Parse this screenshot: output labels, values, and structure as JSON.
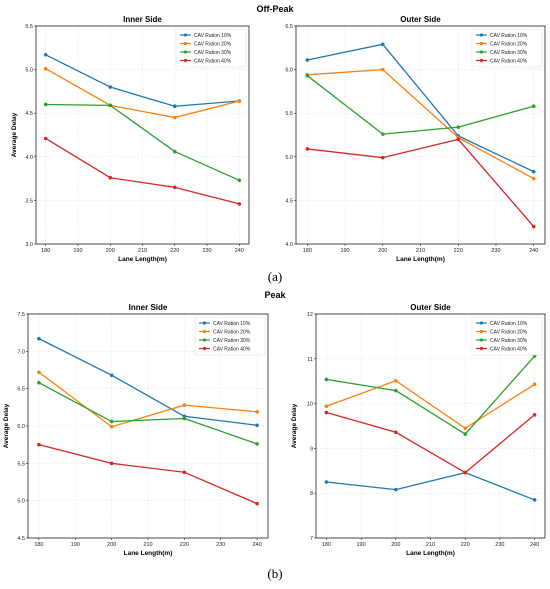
{
  "figure": {
    "label_a": "(a)",
    "label_b": "(b)"
  },
  "chart_data": [
    {
      "type": "line",
      "group": "Off-Peak",
      "title": "Inner Side",
      "xlabel": "Lane Length(m)",
      "ylabel": "Average Delay",
      "x": [
        180,
        200,
        220,
        240
      ],
      "xticks": [
        180,
        190,
        200,
        210,
        220,
        230,
        240
      ],
      "xlim": [
        177,
        243
      ],
      "ylim": [
        3.0,
        5.5
      ],
      "yticks": [
        3.0,
        3.5,
        4.0,
        4.5,
        5.0,
        5.5
      ],
      "ytick_labels": [
        "3.0",
        "3.5",
        "4.0",
        "4.5",
        "5.0",
        "5.5"
      ],
      "grid": true,
      "legend_position": "top-right",
      "series": [
        {
          "name": "CAV Ration 10%",
          "color": "#1f77b4",
          "values": [
            5.17,
            4.8,
            4.58,
            4.64
          ]
        },
        {
          "name": "CAV Ration 20%",
          "color": "#ff7f0e",
          "values": [
            5.01,
            4.59,
            4.45,
            4.64
          ]
        },
        {
          "name": "CAV Ration 30%",
          "color": "#2ca02c",
          "values": [
            4.6,
            4.59,
            4.06,
            3.73
          ]
        },
        {
          "name": "CAV Ration 40%",
          "color": "#d62728",
          "values": [
            4.21,
            3.76,
            3.65,
            3.46
          ]
        }
      ]
    },
    {
      "type": "line",
      "group": "Off-Peak",
      "title": "Outer Side",
      "xlabel": "Lane Length(m)",
      "ylabel": "",
      "x": [
        180,
        200,
        220,
        240
      ],
      "xticks": [
        180,
        190,
        200,
        210,
        220,
        230,
        240
      ],
      "xlim": [
        177,
        243
      ],
      "ylim": [
        4.0,
        6.5
      ],
      "yticks": [
        4.0,
        4.5,
        5.0,
        5.5,
        6.0,
        6.5
      ],
      "ytick_labels": [
        "4.0",
        "4.5",
        "5.0",
        "5.5",
        "6.0",
        "6.5"
      ],
      "grid": true,
      "legend_position": "top-right",
      "series": [
        {
          "name": "CAV Ration 10%",
          "color": "#1f77b4",
          "values": [
            6.11,
            6.29,
            5.24,
            4.83
          ]
        },
        {
          "name": "CAV Ration 20%",
          "color": "#ff7f0e",
          "values": [
            5.94,
            6.0,
            5.22,
            4.75
          ]
        },
        {
          "name": "CAV Ration 30%",
          "color": "#2ca02c",
          "values": [
            5.93,
            5.26,
            5.34,
            5.58
          ]
        },
        {
          "name": "CAV Ration 40%",
          "color": "#d62728",
          "values": [
            5.09,
            4.99,
            5.2,
            4.2
          ]
        }
      ]
    },
    {
      "type": "line",
      "group": "Peak",
      "title": "Inner Side",
      "xlabel": "Lane Length(m)",
      "ylabel": "Average Delay",
      "x": [
        180,
        200,
        220,
        240
      ],
      "xticks": [
        180,
        190,
        200,
        210,
        220,
        230,
        240
      ],
      "xlim": [
        177,
        243
      ],
      "ylim": [
        4.5,
        7.5
      ],
      "yticks": [
        4.5,
        5.0,
        5.5,
        6.0,
        6.5,
        7.0,
        7.5
      ],
      "ytick_labels": [
        "4.5",
        "5.0",
        "5.5",
        "6.0",
        "6.5",
        "7.0",
        "7.5"
      ],
      "grid": true,
      "legend_position": "top-right",
      "series": [
        {
          "name": "CAV Ration 10%",
          "color": "#1f77b4",
          "values": [
            7.17,
            6.68,
            6.13,
            6.01
          ]
        },
        {
          "name": "CAV Ration 20%",
          "color": "#ff7f0e",
          "values": [
            6.72,
            5.99,
            6.28,
            6.19
          ]
        },
        {
          "name": "CAV Ration 30%",
          "color": "#2ca02c",
          "values": [
            6.58,
            6.06,
            6.1,
            5.76
          ]
        },
        {
          "name": "CAV Ration 40%",
          "color": "#d62728",
          "values": [
            5.75,
            5.5,
            5.38,
            4.96
          ]
        }
      ]
    },
    {
      "type": "line",
      "group": "Peak",
      "title": "Outer Side",
      "xlabel": "Lane Length(m)",
      "ylabel": "Average Delay",
      "x": [
        180,
        200,
        220,
        240
      ],
      "xticks": [
        180,
        190,
        200,
        210,
        220,
        230,
        240
      ],
      "xlim": [
        177,
        243
      ],
      "ylim": [
        7,
        12
      ],
      "yticks": [
        7,
        8,
        9,
        10,
        11,
        12
      ],
      "ytick_labels": [
        "7",
        "8",
        "9",
        "10",
        "11",
        "12"
      ],
      "grid": true,
      "legend_position": "top-right",
      "series": [
        {
          "name": "CAV Ration 10%",
          "color": "#1f77b4",
          "values": [
            8.25,
            8.08,
            8.46,
            7.85
          ]
        },
        {
          "name": "CAV Ration 20%",
          "color": "#ff7f0e",
          "values": [
            9.94,
            10.51,
            9.45,
            10.43
          ]
        },
        {
          "name": "CAV Ration 30%",
          "color": "#2ca02c",
          "values": [
            10.54,
            10.29,
            9.32,
            11.06
          ]
        },
        {
          "name": "CAV Ration 40%",
          "color": "#d62728",
          "values": [
            9.8,
            9.36,
            8.46,
            9.75
          ]
        }
      ]
    }
  ]
}
